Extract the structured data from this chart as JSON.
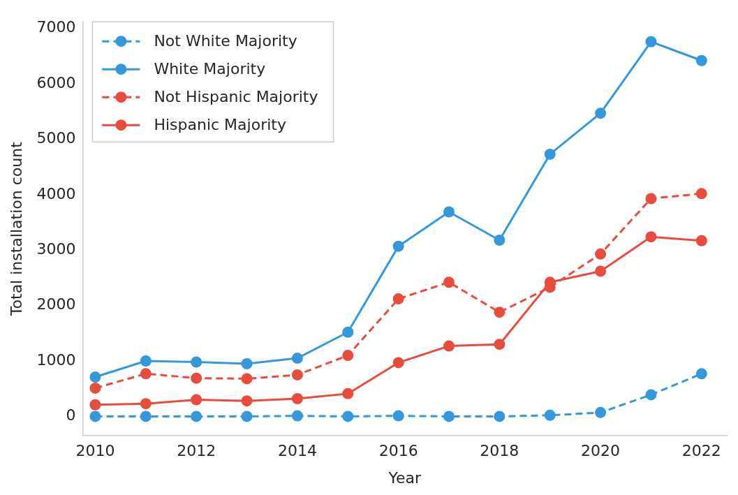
{
  "chart_data": {
    "type": "line",
    "xlabel": "Year",
    "ylabel": "Total installation count",
    "x": [
      2010,
      2011,
      2012,
      2013,
      2014,
      2015,
      2016,
      2017,
      2018,
      2019,
      2020,
      2021,
      2022
    ],
    "xlim": [
      2009.75,
      2022.5
    ],
    "xticks": [
      2010,
      2012,
      2014,
      2016,
      2018,
      2020,
      2022
    ],
    "ylim": [
      -350,
      7120
    ],
    "yticks": [
      0,
      1000,
      2000,
      3000,
      4000,
      5000,
      6000,
      7000
    ],
    "grid": false,
    "legend": "top left",
    "marker": "circle",
    "series": [
      {
        "name": "Not White Majority",
        "color": "#3498db",
        "line_style": "dashed",
        "values": [
          0,
          0,
          0,
          0,
          10,
          0,
          10,
          0,
          0,
          20,
          70,
          390,
          770
        ]
      },
      {
        "name": "White Majority",
        "color": "#3498db",
        "line_style": "solid",
        "values": [
          710,
          1000,
          980,
          950,
          1050,
          1520,
          3070,
          3690,
          3180,
          4730,
          5470,
          6760,
          6420
        ]
      },
      {
        "name": "Not Hispanic Majority",
        "color": "#e74c3c",
        "line_style": "dashed",
        "values": [
          510,
          770,
          690,
          680,
          750,
          1100,
          2120,
          2420,
          1880,
          2330,
          2930,
          3930,
          4020
        ]
      },
      {
        "name": "Hispanic Majority",
        "color": "#e74c3c",
        "line_style": "solid",
        "values": [
          210,
          230,
          300,
          280,
          320,
          410,
          970,
          1270,
          1300,
          2420,
          2620,
          3240,
          3170
        ]
      }
    ]
  }
}
